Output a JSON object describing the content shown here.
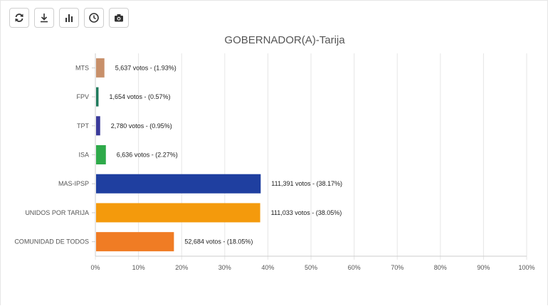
{
  "toolbar": {
    "buttons": [
      {
        "name": "refresh-button",
        "icon": "refresh-icon"
      },
      {
        "name": "download-button",
        "icon": "download-icon"
      },
      {
        "name": "bar-chart-button",
        "icon": "bar-chart-icon"
      },
      {
        "name": "history-button",
        "icon": "clock-icon"
      },
      {
        "name": "screenshot-button",
        "icon": "camera-icon"
      }
    ]
  },
  "chart_data": {
    "type": "bar",
    "orientation": "horizontal",
    "title": "GOBERNADOR(A)-Tarija",
    "xlim": [
      0,
      100
    ],
    "x_ticks": [
      "0%",
      "10%",
      "20%",
      "30%",
      "40%",
      "50%",
      "60%",
      "70%",
      "80%",
      "90%",
      "100%"
    ],
    "grid": true,
    "categories": [
      "MTS",
      "FPV",
      "TPT",
      "ISA",
      "MAS-IPSP",
      "UNIDOS POR TARIJA",
      "COMUNIDAD DE TODOS"
    ],
    "values": [
      1.93,
      0.57,
      0.95,
      2.27,
      38.17,
      38.05,
      18.05
    ],
    "votes": [
      "5,637",
      "1,654",
      "2,780",
      "6,636",
      "111,391",
      "111,033",
      "52,684"
    ],
    "data_labels": [
      "5,637 votos - (1.93%)",
      "1,654 votos - (0.57%)",
      "2,780 votos - (0.95%)",
      "6,636 votos - (2.27%)",
      "111,391 votos - (38.17%)",
      "111,033 votos - (38.05%)",
      "52,684 votos - (18.05%)"
    ],
    "colors": [
      "#c8906a",
      "#1f7a5c",
      "#3a3a9a",
      "#2eaa4a",
      "#1f3fa0",
      "#f49a0c",
      "#f07c24"
    ]
  }
}
